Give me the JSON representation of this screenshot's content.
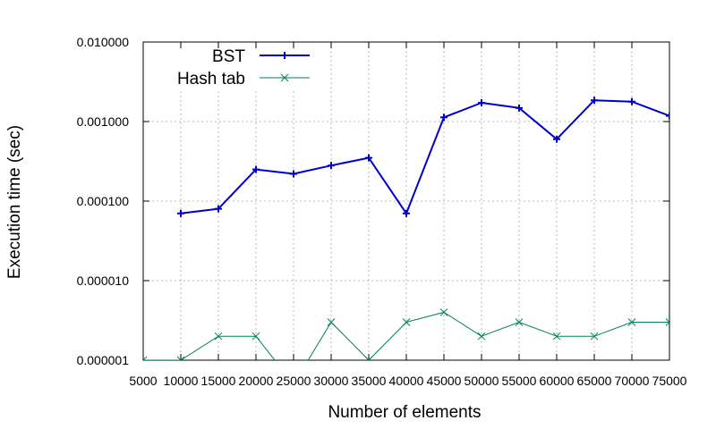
{
  "chart_data": {
    "type": "line",
    "title": "",
    "xlabel": "Number of elements",
    "ylabel": "Execution time (sec)",
    "x": [
      5000,
      10000,
      15000,
      20000,
      25000,
      30000,
      35000,
      40000,
      45000,
      50000,
      55000,
      60000,
      65000,
      70000,
      75000
    ],
    "x_tick_labels": [
      "5000",
      "10000",
      "15000",
      "20000",
      "25000",
      "30000",
      "35000",
      "40000",
      "45000",
      "50000",
      "55000",
      "60000",
      "65000",
      "70000",
      "75000"
    ],
    "xlim": [
      5000,
      75000
    ],
    "ylim": [
      1e-06,
      0.01
    ],
    "y_scale": "log",
    "y_ticks": [
      1e-06,
      1e-05,
      0.0001,
      0.001,
      0.01
    ],
    "y_tick_labels": [
      "0.000001",
      "0.000010",
      "0.000100",
      "0.001000",
      "0.010000"
    ],
    "grid": true,
    "legend_position": "top-left",
    "series": [
      {
        "name": "BST",
        "color": "#0000cc",
        "marker": "plus",
        "values": [
          null,
          7e-05,
          8e-05,
          0.00025,
          0.00022,
          0.00028,
          0.00035,
          7e-05,
          0.00113,
          0.00172,
          0.00148,
          0.0006,
          0.00185,
          0.00178,
          0.00118
        ]
      },
      {
        "name": "Hash tab",
        "color": "#008060",
        "marker": "x",
        "values": [
          1e-06,
          1e-06,
          2e-06,
          2e-06,
          5e-07,
          3e-06,
          1e-06,
          3e-06,
          4e-06,
          2e-06,
          3e-06,
          2e-06,
          2e-06,
          3e-06,
          3e-06
        ]
      }
    ]
  }
}
